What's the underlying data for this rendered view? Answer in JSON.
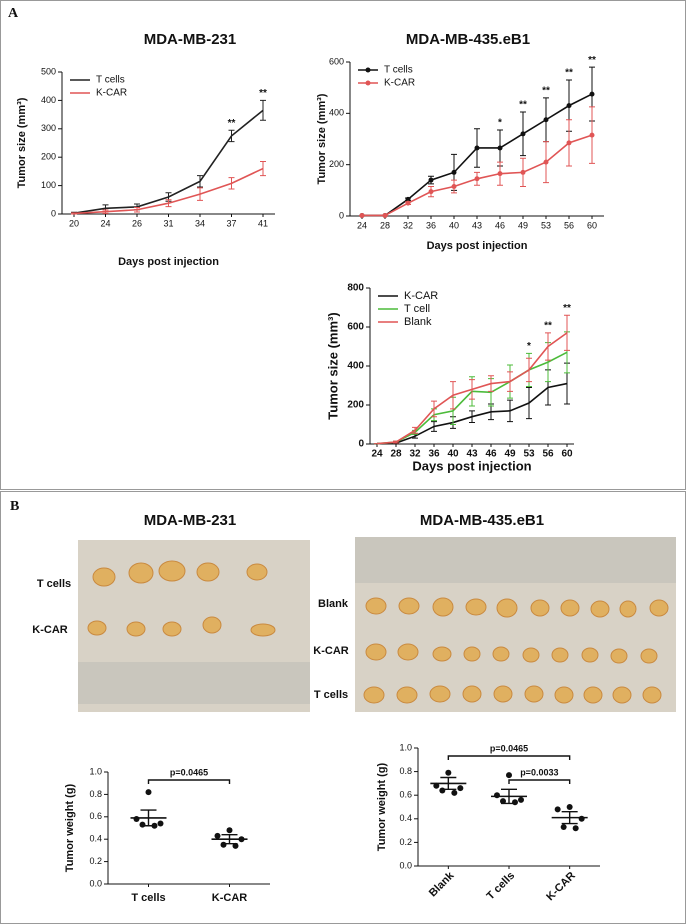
{
  "figure": {
    "panel_labels": [
      "A",
      "B"
    ],
    "photos": [
      {
        "title": "MDA-MB-231",
        "row_labels": [
          "T cells",
          "K-CAR"
        ]
      },
      {
        "title": "MDA-MB-435.eB1",
        "row_labels": [
          "Blank",
          "K-CAR",
          "T cells"
        ]
      }
    ]
  },
  "chart_data": [
    {
      "type": "line",
      "title": "MDA-MB-231",
      "x_label": "Days post injection",
      "y_label": "Tumor size (mm³)",
      "categories": [
        "20",
        "24",
        "26",
        "31",
        "34",
        "37",
        "41"
      ],
      "series": [
        {
          "name": "T cells",
          "color": "#222222",
          "values": [
            3,
            20,
            25,
            60,
            115,
            275,
            365
          ],
          "errors": [
            3,
            12,
            10,
            15,
            20,
            20,
            35
          ]
        },
        {
          "name": "K-CAR",
          "color": "#e05555",
          "values": [
            2,
            8,
            15,
            38,
            70,
            108,
            160
          ],
          "errors": [
            2,
            6,
            8,
            12,
            22,
            20,
            25
          ]
        }
      ],
      "annotations": [
        null,
        null,
        null,
        null,
        null,
        "**",
        "**"
      ],
      "ylim": [
        0,
        500
      ],
      "yticks": [
        0,
        100,
        200,
        300,
        400,
        500
      ],
      "legend": "upper left",
      "markers": false
    },
    {
      "type": "line",
      "title": "MDA-MB-435.eB1",
      "x_label": "Days post injection",
      "y_label": "Tumor size (mm³)",
      "categories": [
        "24",
        "28",
        "32",
        "36",
        "40",
        "43",
        "46",
        "49",
        "53",
        "56",
        "60"
      ],
      "series": [
        {
          "name": "T cells",
          "color": "#111111",
          "values": [
            2,
            2,
            65,
            140,
            170,
            265,
            265,
            320,
            375,
            430,
            475
          ],
          "errors": [
            0,
            0,
            5,
            15,
            70,
            75,
            70,
            85,
            85,
            100,
            105
          ]
        },
        {
          "name": "K-CAR",
          "color": "#e05555",
          "values": [
            2,
            2,
            50,
            95,
            115,
            145,
            165,
            170,
            210,
            285,
            315
          ],
          "errors": [
            0,
            0,
            5,
            20,
            25,
            25,
            45,
            55,
            80,
            90,
            110
          ]
        }
      ],
      "annotations": [
        null,
        null,
        null,
        null,
        null,
        null,
        "*",
        "**",
        "**",
        "**",
        "**"
      ],
      "ylim": [
        0,
        600
      ],
      "yticks": [
        0,
        200,
        400,
        600
      ],
      "legend": "upper left",
      "markers": true
    },
    {
      "type": "line",
      "x_label": "Days post injection",
      "y_label": "Tumor size (mm³)",
      "categories": [
        "24",
        "28",
        "32",
        "36",
        "40",
        "43",
        "46",
        "49",
        "53",
        "56",
        "60"
      ],
      "series": [
        {
          "name": "K-CAR",
          "color": "#111111",
          "values": [
            2,
            5,
            40,
            90,
            110,
            140,
            165,
            170,
            210,
            290,
            310
          ],
          "errors": [
            0,
            3,
            10,
            25,
            30,
            30,
            40,
            55,
            80,
            90,
            105
          ]
        },
        {
          "name": "T cell",
          "color": "#4cbb3a",
          "values": [
            2,
            10,
            60,
            150,
            170,
            270,
            265,
            320,
            380,
            420,
            470
          ],
          "errors": [
            0,
            5,
            10,
            30,
            70,
            75,
            70,
            85,
            85,
            100,
            105
          ]
        },
        {
          "name": "Blank",
          "color": "#e05555",
          "values": [
            2,
            10,
            70,
            180,
            250,
            280,
            310,
            320,
            380,
            500,
            570
          ],
          "errors": [
            0,
            5,
            15,
            40,
            70,
            50,
            40,
            50,
            60,
            70,
            90
          ]
        }
      ],
      "annotations": [
        null,
        null,
        null,
        null,
        null,
        null,
        null,
        null,
        "*",
        "**",
        "**"
      ],
      "ylim": [
        0,
        800
      ],
      "yticks": [
        0,
        200,
        400,
        600,
        800
      ],
      "legend": "upper left",
      "markers": false
    },
    {
      "type": "dot",
      "y_label": "Tumor weight (g)",
      "categories": [
        "T cells",
        "K-CAR"
      ],
      "color": "#111111",
      "values": [
        [
          0.82,
          0.58,
          0.54,
          0.53,
          0.52
        ],
        [
          0.48,
          0.43,
          0.4,
          0.35,
          0.34
        ]
      ],
      "means": [
        0.59,
        0.4
      ],
      "sems": [
        0.07,
        0.04
      ],
      "comparisons": [
        {
          "between": [
            "T cells",
            "K-CAR"
          ],
          "label": "p=0.0465"
        }
      ],
      "ylim": [
        0,
        1.0
      ],
      "yticks": [
        {
          "value": 0,
          "label": "0.0"
        },
        0.2,
        0.4,
        0.6,
        0.8,
        {
          "value": 1,
          "label": "1.0"
        }
      ],
      "x_tick_rotation": 0
    },
    {
      "type": "dot",
      "y_label": "Tumor weight (g)",
      "categories": [
        "Blank",
        "T cells",
        "K-CAR"
      ],
      "color": "#111111",
      "values": [
        [
          0.79,
          0.68,
          0.66,
          0.64,
          0.62
        ],
        [
          0.77,
          0.6,
          0.56,
          0.55,
          0.54
        ],
        [
          0.5,
          0.48,
          0.4,
          0.33,
          0.32
        ]
      ],
      "means": [
        0.7,
        0.59,
        0.41
      ],
      "sems": [
        0.05,
        0.06,
        0.05
      ],
      "comparisons": [
        {
          "between": [
            "Blank",
            "K-CAR"
          ],
          "label": "p=0.0465"
        },
        {
          "between": [
            "T cells",
            "K-CAR"
          ],
          "label": "p=0.0033"
        }
      ],
      "ylim": [
        0,
        1.0
      ],
      "yticks": [
        {
          "value": 0,
          "label": "0.0"
        },
        0.2,
        0.4,
        0.6,
        0.8,
        {
          "value": 1,
          "label": "1.0"
        }
      ],
      "x_tick_rotation": -45
    }
  ]
}
